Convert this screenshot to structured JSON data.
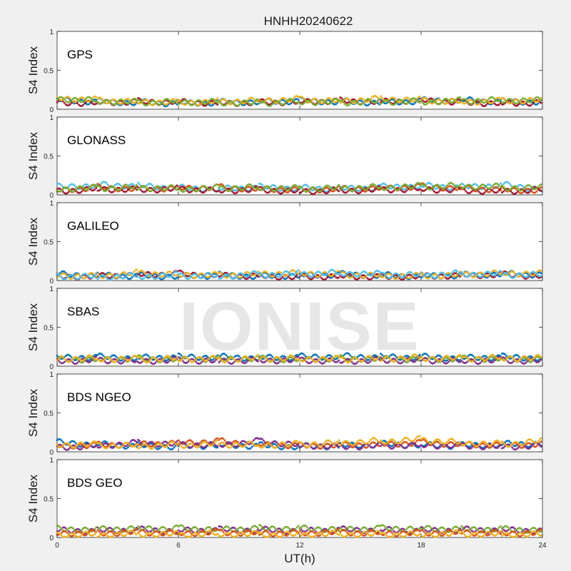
{
  "chart_data": {
    "type": "scatter",
    "title": "HNHH20240622",
    "xlabel": "UT(h)",
    "ylabel": "S4 Index",
    "xlim": [
      0,
      24
    ],
    "ylim": [
      0,
      1
    ],
    "xticks": [
      "0",
      "6",
      "12",
      "18",
      "24"
    ],
    "yticks": [
      "0",
      "0.5",
      "1"
    ],
    "watermark": "IONISE",
    "colors": [
      "#0072BD",
      "#D95319",
      "#EDB120",
      "#7E2F8E",
      "#77AC30",
      "#4DBEEE",
      "#A2142F"
    ],
    "panels": [
      {
        "label": "GPS",
        "series": [
          {
            "color": "#0072BD",
            "x": [
              0,
              2,
              4,
              6,
              8,
              10,
              12,
              14,
              16,
              18,
              20,
              22,
              24
            ],
            "y": [
              0.12,
              0.1,
              0.09,
              0.08,
              0.09,
              0.1,
              0.11,
              0.1,
              0.09,
              0.11,
              0.12,
              0.1,
              0.1
            ]
          },
          {
            "color": "#A2142F",
            "x": [
              0,
              2,
              4,
              6,
              8,
              10,
              12,
              14,
              16,
              18,
              20,
              22,
              24
            ],
            "y": [
              0.08,
              0.09,
              0.1,
              0.1,
              0.08,
              0.09,
              0.1,
              0.11,
              0.1,
              0.12,
              0.09,
              0.08,
              0.09
            ]
          },
          {
            "color": "#EDB120",
            "x": [
              0,
              2,
              4,
              6,
              8,
              10,
              12,
              14,
              16,
              18,
              20,
              22,
              24
            ],
            "y": [
              0.15,
              0.12,
              0.1,
              0.09,
              0.1,
              0.12,
              0.13,
              0.11,
              0.14,
              0.12,
              0.1,
              0.11,
              0.12
            ]
          },
          {
            "color": "#77AC30",
            "x": [
              0,
              2,
              4,
              6,
              8,
              10,
              12,
              14,
              16,
              18,
              20,
              22,
              24
            ],
            "y": [
              0.14,
              0.11,
              0.09,
              0.1,
              0.09,
              0.08,
              0.1,
              0.09,
              0.1,
              0.1,
              0.11,
              0.12,
              0.11
            ]
          }
        ]
      },
      {
        "label": "GLONASS",
        "series": [
          {
            "color": "#4DBEEE",
            "x": [
              0,
              2,
              4,
              6,
              8,
              10,
              12,
              14,
              16,
              18,
              20,
              22,
              24
            ],
            "y": [
              0.1,
              0.13,
              0.12,
              0.09,
              0.08,
              0.1,
              0.09,
              0.08,
              0.1,
              0.12,
              0.1,
              0.13,
              0.08
            ]
          },
          {
            "color": "#D95319",
            "x": [
              0,
              2,
              4,
              6,
              8,
              10,
              12,
              14,
              16,
              18,
              20,
              22,
              24
            ],
            "y": [
              0.06,
              0.1,
              0.08,
              0.09,
              0.1,
              0.08,
              0.07,
              0.08,
              0.09,
              0.11,
              0.09,
              0.07,
              0.06
            ]
          },
          {
            "color": "#A2142F",
            "x": [
              0,
              2,
              4,
              6,
              8,
              10,
              12,
              14,
              16,
              18,
              20,
              22,
              24
            ],
            "y": [
              0.05,
              0.08,
              0.07,
              0.08,
              0.06,
              0.07,
              0.05,
              0.06,
              0.07,
              0.08,
              0.06,
              0.05,
              0.07
            ]
          },
          {
            "color": "#77AC30",
            "x": [
              0,
              2,
              4,
              6,
              8,
              10,
              12,
              14,
              16,
              18,
              20,
              22,
              24
            ],
            "y": [
              0.08,
              0.09,
              0.1,
              0.08,
              0.09,
              0.1,
              0.08,
              0.09,
              0.1,
              0.11,
              0.12,
              0.1,
              0.09
            ]
          }
        ]
      },
      {
        "label": "GALILEO",
        "series": [
          {
            "color": "#0072BD",
            "x": [
              0,
              2,
              4,
              6,
              8,
              10,
              12,
              14,
              16,
              18,
              20,
              22,
              24
            ],
            "y": [
              0.08,
              0.07,
              0.06,
              0.06,
              0.07,
              0.06,
              0.07,
              0.08,
              0.07,
              0.06,
              0.07,
              0.09,
              0.08
            ]
          },
          {
            "color": "#A2142F",
            "x": [
              0,
              2,
              4,
              6,
              8,
              10,
              12,
              14,
              16,
              18,
              20,
              22,
              24
            ],
            "y": [
              0.05,
              0.06,
              0.08,
              0.09,
              0.07,
              0.06,
              0.05,
              0.06,
              0.05,
              0.06,
              0.07,
              0.08,
              0.06
            ]
          },
          {
            "color": "#EDB120",
            "x": [
              0,
              2,
              4,
              6,
              8,
              10,
              12,
              14,
              16,
              18,
              20,
              22,
              24
            ],
            "y": [
              0.07,
              0.06,
              0.1,
              0.08,
              0.07,
              0.09,
              0.1,
              0.08,
              0.07,
              0.06,
              0.08,
              0.1,
              0.09
            ]
          },
          {
            "color": "#4DBEEE",
            "x": [
              0,
              2,
              4,
              6,
              8,
              10,
              12,
              14,
              16,
              18,
              20,
              22,
              24
            ],
            "y": [
              0.06,
              0.05,
              0.06,
              0.07,
              0.06,
              0.08,
              0.09,
              0.1,
              0.08,
              0.07,
              0.09,
              0.08,
              0.07
            ]
          }
        ]
      },
      {
        "label": "SBAS",
        "series": [
          {
            "color": "#0072BD",
            "x": [
              0,
              2,
              4,
              6,
              8,
              10,
              12,
              14,
              16,
              18,
              20,
              22,
              24
            ],
            "y": [
              0.11,
              0.12,
              0.11,
              0.12,
              0.12,
              0.11,
              0.12,
              0.13,
              0.12,
              0.12,
              0.11,
              0.12,
              0.11
            ]
          },
          {
            "color": "#77AC30",
            "x": [
              0,
              2,
              4,
              6,
              8,
              10,
              12,
              14,
              16,
              18,
              20,
              22,
              24
            ],
            "y": [
              0.09,
              0.09,
              0.1,
              0.09,
              0.1,
              0.1,
              0.09,
              0.1,
              0.1,
              0.09,
              0.1,
              0.1,
              0.09
            ]
          },
          {
            "color": "#7E2F8E",
            "x": [
              0,
              2,
              4,
              6,
              8,
              10,
              12,
              14,
              16,
              18,
              20,
              22,
              24
            ],
            "y": [
              0.07,
              0.08,
              0.07,
              0.08,
              0.07,
              0.08,
              0.08,
              0.07,
              0.08,
              0.08,
              0.07,
              0.08,
              0.07
            ]
          },
          {
            "color": "#EDB120",
            "x": [
              0,
              2,
              4,
              6,
              8,
              10,
              12,
              14,
              16,
              18,
              20,
              22,
              24
            ],
            "y": [
              0.1,
              0.1,
              0.09,
              0.1,
              0.09,
              0.1,
              0.1,
              0.09,
              0.1,
              0.11,
              0.1,
              0.11,
              0.1
            ]
          }
        ]
      },
      {
        "label": "BDS NGEO",
        "series": [
          {
            "color": "#0072BD",
            "x": [
              0,
              2,
              4,
              6,
              8,
              10,
              12,
              14,
              16,
              18,
              20,
              22,
              24
            ],
            "y": [
              0.12,
              0.1,
              0.08,
              0.07,
              0.09,
              0.08,
              0.07,
              0.08,
              0.1,
              0.09,
              0.08,
              0.1,
              0.11
            ]
          },
          {
            "color": "#D95319",
            "x": [
              0,
              2,
              4,
              6,
              8,
              10,
              12,
              14,
              16,
              18,
              20,
              22,
              24
            ],
            "y": [
              0.08,
              0.09,
              0.1,
              0.12,
              0.14,
              0.1,
              0.08,
              0.09,
              0.1,
              0.12,
              0.1,
              0.09,
              0.1
            ]
          },
          {
            "color": "#7E2F8E",
            "x": [
              0,
              2,
              4,
              6,
              8,
              10,
              12,
              14,
              16,
              18,
              20,
              22,
              24
            ],
            "y": [
              0.06,
              0.08,
              0.12,
              0.1,
              0.09,
              0.14,
              0.09,
              0.07,
              0.08,
              0.09,
              0.08,
              0.07,
              0.08
            ]
          },
          {
            "color": "#EDB120",
            "x": [
              0,
              2,
              4,
              6,
              8,
              10,
              12,
              14,
              16,
              18,
              20,
              22,
              24
            ],
            "y": [
              0.1,
              0.09,
              0.08,
              0.09,
              0.1,
              0.09,
              0.1,
              0.12,
              0.14,
              0.16,
              0.12,
              0.1,
              0.14
            ]
          }
        ]
      },
      {
        "label": "BDS GEO",
        "series": [
          {
            "color": "#7E2F8E",
            "x": [
              0,
              2,
              4,
              6,
              8,
              10,
              12,
              14,
              16,
              18,
              20,
              22,
              24
            ],
            "y": [
              0.09,
              0.09,
              0.1,
              0.09,
              0.1,
              0.1,
              0.09,
              0.1,
              0.1,
              0.09,
              0.1,
              0.1,
              0.09
            ]
          },
          {
            "color": "#77AC30",
            "x": [
              0,
              2,
              4,
              6,
              8,
              10,
              12,
              14,
              16,
              18,
              20,
              22,
              24
            ],
            "y": [
              0.11,
              0.11,
              0.12,
              0.12,
              0.11,
              0.12,
              0.12,
              0.11,
              0.12,
              0.12,
              0.11,
              0.11,
              0.1
            ]
          },
          {
            "color": "#D95319",
            "x": [
              0,
              2,
              4,
              6,
              8,
              10,
              12,
              14,
              16,
              18,
              20,
              22,
              24
            ],
            "y": [
              0.06,
              0.06,
              0.07,
              0.06,
              0.07,
              0.06,
              0.06,
              0.07,
              0.06,
              0.06,
              0.07,
              0.06,
              0.06
            ]
          },
          {
            "color": "#EDB120",
            "x": [
              0,
              2,
              4,
              6,
              8,
              10,
              12,
              14,
              16,
              18,
              20,
              22,
              24
            ],
            "y": [
              0.04,
              0.04,
              0.05,
              0.04,
              0.05,
              0.04,
              0.04,
              0.05,
              0.04,
              0.04,
              0.05,
              0.04,
              0.04
            ]
          }
        ]
      }
    ]
  }
}
